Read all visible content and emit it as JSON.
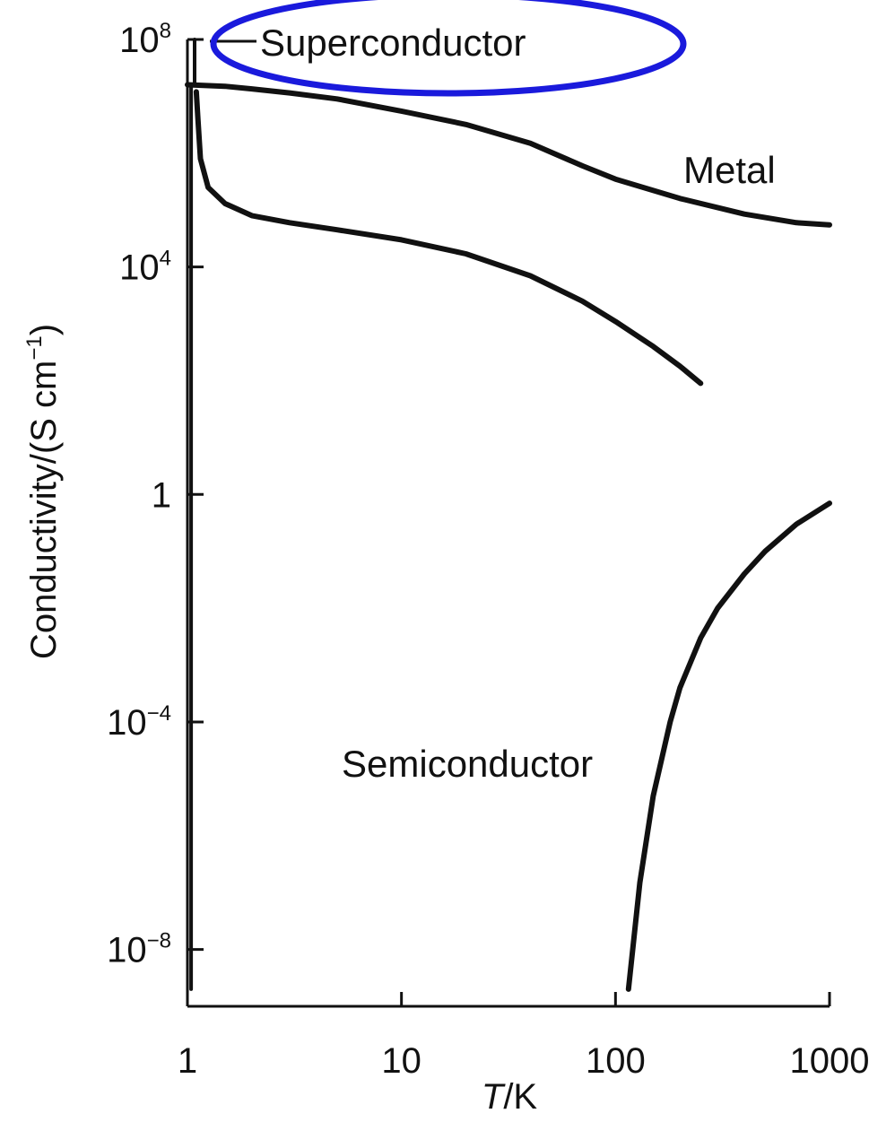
{
  "chart_data": {
    "type": "line",
    "x_scale": "log",
    "y_scale": "log",
    "xlabel": {
      "italic": "T",
      "rest": "/K"
    },
    "ylabel": {
      "main": "Conductivity/(S cm",
      "sup": "−1",
      "close": ")"
    },
    "xlim": [
      1,
      1000
    ],
    "ylim": [
      1e-09,
      100000000.0
    ],
    "x_ticks": [
      {
        "value": 1,
        "label": "1"
      },
      {
        "value": 10,
        "label": "10"
      },
      {
        "value": 100,
        "label": "100"
      },
      {
        "value": 1000,
        "label": "1000"
      }
    ],
    "y_ticks": [
      {
        "value": 100000000.0,
        "base": "10",
        "exp": "8"
      },
      {
        "value": 10000.0,
        "base": "10",
        "exp": "4"
      },
      {
        "value": 1,
        "base": "1",
        "exp": ""
      },
      {
        "value": 0.0001,
        "base": "10",
        "exp": "−4"
      },
      {
        "value": 1e-08,
        "base": "10",
        "exp": "−8"
      }
    ],
    "grid": false,
    "series": [
      {
        "name": "Superconductor",
        "points": [
          [
            1.08,
            100000000.0
          ],
          [
            1.08,
            16000000.0
          ],
          [
            1.04,
            16000000.0
          ],
          [
            1.04,
            2e-09
          ]
        ]
      },
      {
        "name": "Metal",
        "points": [
          [
            1,
            16000000.0
          ],
          [
            1.5,
            15000000.0
          ],
          [
            2,
            13500000.0
          ],
          [
            3,
            11500000.0
          ],
          [
            5,
            9000000.0
          ],
          [
            10,
            5500000.0
          ],
          [
            20,
            3200000.0
          ],
          [
            40,
            1500000.0
          ],
          [
            70,
            600000.0
          ],
          [
            100,
            350000.0
          ],
          [
            200,
            160000.0
          ],
          [
            400,
            85000.0
          ],
          [
            700,
            60000.0
          ],
          [
            1000,
            55000.0
          ]
        ]
      },
      {
        "name": "",
        "points": [
          [
            1.1,
            12000000.0
          ],
          [
            1.12,
            4000000.0
          ],
          [
            1.15,
            800000.0
          ],
          [
            1.25,
            250000.0
          ],
          [
            1.5,
            130000.0
          ],
          [
            2,
            80000.0
          ],
          [
            3,
            60000.0
          ],
          [
            5,
            45000.0
          ],
          [
            10,
            30000.0
          ],
          [
            20,
            17000.0
          ],
          [
            40,
            7000.0
          ],
          [
            70,
            2500.0
          ],
          [
            100,
            1100.0
          ],
          [
            150,
            400
          ],
          [
            200,
            180
          ],
          [
            250,
            90
          ]
        ]
      },
      {
        "name": "Semiconductor",
        "points": [
          [
            115,
            2e-09
          ],
          [
            130,
            1.5e-07
          ],
          [
            150,
            5e-06
          ],
          [
            180,
            0.0001
          ],
          [
            200,
            0.0004
          ],
          [
            250,
            0.003
          ],
          [
            300,
            0.01
          ],
          [
            400,
            0.04
          ],
          [
            500,
            0.1
          ],
          [
            700,
            0.3
          ],
          [
            1000,
            0.7
          ]
        ]
      }
    ],
    "highlight": {
      "target": "Superconductor",
      "shape": "ellipse",
      "color": "#1a1adc"
    }
  }
}
